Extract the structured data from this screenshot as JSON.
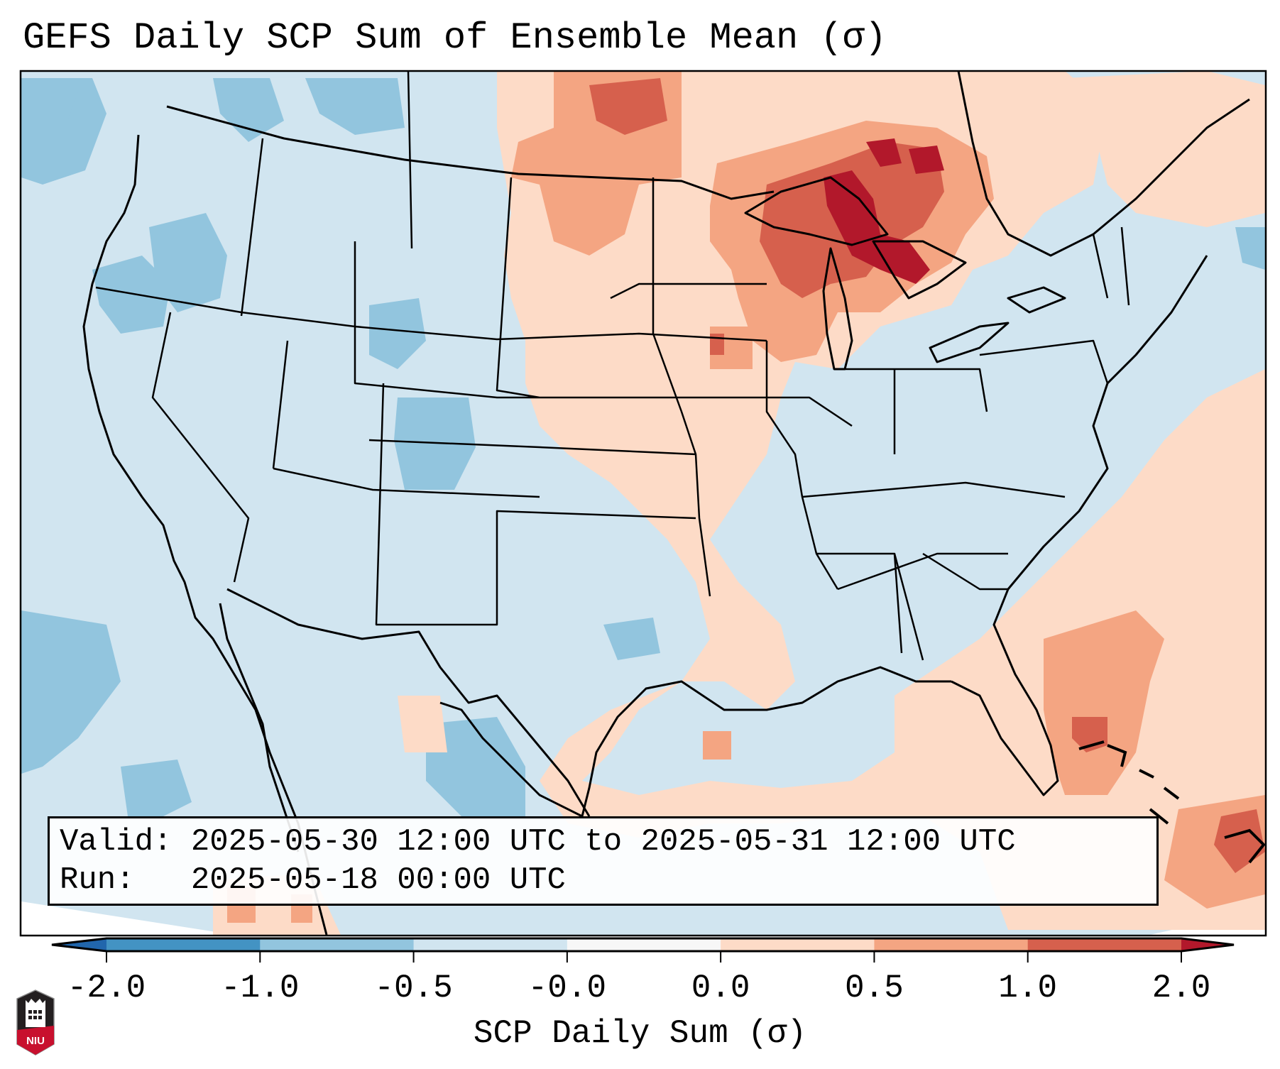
{
  "title": "GEFS Daily SCP Sum of Ensemble Mean (σ)",
  "info": {
    "valid_label": "Valid:",
    "valid_value": "2025-05-30 12:00 UTC to 2025-05-31 12:00 UTC",
    "run_label": "Run:",
    "run_value": "2025-05-18 00:00 UTC"
  },
  "colorbar": {
    "label": "SCP Daily Sum (σ)",
    "ticks": [
      "-2.0",
      "-1.0",
      "-0.5",
      "-0.0",
      "0.0",
      "0.5",
      "1.0",
      "2.0"
    ],
    "segment_colors": [
      "#4393c3",
      "#92c5de",
      "#d1e5f0",
      "#f7f7f7",
      "#fddbc7",
      "#f4a582",
      "#d6604d"
    ],
    "under_color": "#2166ac",
    "over_color": "#b2182b"
  },
  "logo": {
    "text": "NIU",
    "name": "niu-logo"
  },
  "map": {
    "region": "Contiguous United States",
    "field": "SCP daily sum anomaly",
    "background_category": "-0.5 to 0.0",
    "highlights": [
      {
        "region": "Upper Great Lakes / Lake Superior",
        "category": "above 2.0"
      },
      {
        "region": "Western Ontario",
        "category": "1.0 to 2.0"
      },
      {
        "region": "North Dakota / southern Manitoba",
        "category": "0.5 to 1.0"
      },
      {
        "region": "Southeast Atlantic off Florida / Bahamas",
        "category": "0.5 to 1.0"
      },
      {
        "region": "Hispaniola area",
        "category": "1.0 to 2.0"
      },
      {
        "region": "Colorado / Utah",
        "category": "-1.0 to -0.5"
      },
      {
        "region": "Pacific Northwest / Oregon",
        "category": "-1.0 to -0.5"
      }
    ]
  }
}
